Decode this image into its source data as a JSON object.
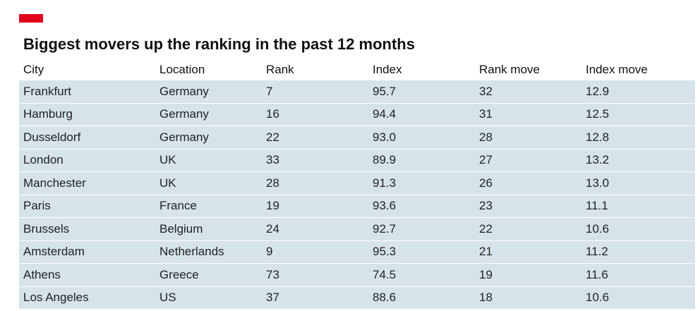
{
  "colors": {
    "accent": "#e3001b",
    "row_background": "#d6e3eb"
  },
  "chart_data": {
    "type": "table",
    "title": "Biggest movers up the ranking in the past 12 months",
    "columns": [
      "City",
      "Location",
      "Rank",
      "Index",
      "Rank move",
      "Index move"
    ],
    "rows": [
      [
        "Frankfurt",
        "Germany",
        "7",
        "95.7",
        "32",
        "12.9"
      ],
      [
        "Hamburg",
        "Germany",
        "16",
        "94.4",
        "31",
        "12.5"
      ],
      [
        "Dusseldorf",
        "Germany",
        "22",
        "93.0",
        "28",
        "12.8"
      ],
      [
        "London",
        "UK",
        "33",
        "89.9",
        "27",
        "13.2"
      ],
      [
        "Manchester",
        "UK",
        "28",
        "91.3",
        "26",
        "13.0"
      ],
      [
        "Paris",
        "France",
        "19",
        "93.6",
        "23",
        "11.1"
      ],
      [
        "Brussels",
        "Belgium",
        "24",
        "92.7",
        "22",
        "10.6"
      ],
      [
        "Amsterdam",
        "Netherlands",
        "9",
        "95.3",
        "21",
        "11.2"
      ],
      [
        "Athens",
        "Greece",
        "73",
        "74.5",
        "19",
        "11.6"
      ],
      [
        "Los Angeles",
        "US",
        "37",
        "88.6",
        "18",
        "10.6"
      ]
    ]
  }
}
